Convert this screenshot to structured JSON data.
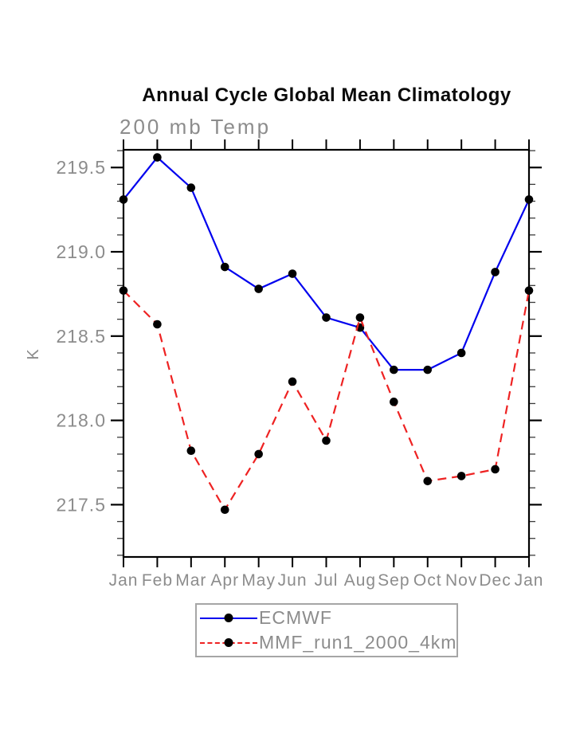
{
  "title": "Annual Cycle Global Mean Climatology",
  "subtitle": "200 mb Temp",
  "colors": {
    "ecmwf_line": "#0000ee",
    "mmf_line": "#ee2222",
    "marker": "#000000",
    "axis": "#000000",
    "label_gray": "#8c8c8c"
  },
  "legend": {
    "items": [
      {
        "label": "ECMWF",
        "color": "#0000ee",
        "style": "solid"
      },
      {
        "label": "MMF_run1_2000_4km",
        "color": "#ee2222",
        "style": "dashed"
      }
    ]
  },
  "chart_data": {
    "type": "line",
    "title": "Annual Cycle Global Mean Climatology",
    "subtitle": "200 mb Temp",
    "ylabel": "K",
    "xlabel": "",
    "x_tick_labels": [
      "Jan",
      "Feb",
      "Mar",
      "Apr",
      "May",
      "Jun",
      "Jul",
      "Aug",
      "Sep",
      "Oct",
      "Nov",
      "Dec",
      "Jan"
    ],
    "series": [
      {
        "name": "ECMWF",
        "color": "#0000ee",
        "line_style": "solid",
        "marker": "filled-circle",
        "marker_color": "#000000",
        "values": [
          219.31,
          219.56,
          219.38,
          218.91,
          218.78,
          218.87,
          218.61,
          218.55,
          218.3,
          218.3,
          218.4,
          218.88,
          219.31
        ]
      },
      {
        "name": "MMF_run1_2000_4km",
        "color": "#ee2222",
        "line_style": "dashed",
        "marker": "filled-circle",
        "marker_color": "#000000",
        "values": [
          218.77,
          218.57,
          217.82,
          217.47,
          217.8,
          218.23,
          217.88,
          218.61,
          218.11,
          217.64,
          217.67,
          217.71,
          218.77
        ]
      }
    ],
    "y_major_ticks": [
      217.5,
      218.0,
      218.5,
      219.0,
      219.5
    ],
    "y_tick_labels": [
      "217.5",
      "218.0",
      "218.5",
      "219.0",
      "219.5"
    ],
    "y_minor_step": 0.1,
    "ylim": [
      217.19,
      219.605
    ],
    "grid": false,
    "legend_position": "bottom"
  }
}
